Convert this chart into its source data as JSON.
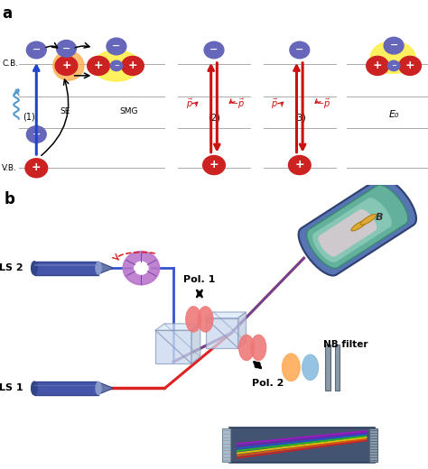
{
  "bg_color": "#ffffff",
  "panel_a_label": "a",
  "panel_b_label": "b",
  "cb_label": "C.B.",
  "vb_label": "V.B.",
  "se_label": "SE",
  "smg_label": "SMG",
  "eg_label": "E₀",
  "ls1_label": "LS 1",
  "ls2_label": "LS 2",
  "pol1_label": "Pol. 1",
  "pol2_label": "Pol. 2",
  "nb_label": "NB filter",
  "label1": "(1)",
  "label2": "(2)",
  "label3": "(3)",
  "electron_color": "#6666bb",
  "hole_color": "#cc2222",
  "orange_glow": "#ffaa44",
  "yellow_glow": "#ffee44",
  "arrow_black": "#111111",
  "arrow_blue": "#2244cc",
  "arrow_red": "#cc1111",
  "line_color": "#aaaaaa",
  "photon_blue": "#5599cc",
  "laser_body": "#4455aa",
  "laser_front": "#5566bb",
  "laser_dark": "#334488",
  "bs_color": "#aabbdd",
  "bs_edge": "#8899bb",
  "wheel_color": "#bb77cc",
  "wheel_edge": "#7744aa",
  "cryo_outer": "#4466aa",
  "cryo_inner_green": "#66bb99",
  "cryo_inner_pink": "#ffaabb",
  "cryo_glow_pink": "#ffccdd",
  "cryo_glow_green": "#aaddcc",
  "lens_red": "#ee7777",
  "lens_orange": "#ffaa55",
  "lens_blue": "#88bbdd",
  "spec_base": "#334466",
  "spec_grating": "#8899aa",
  "gold_coil": "#ddaa33"
}
